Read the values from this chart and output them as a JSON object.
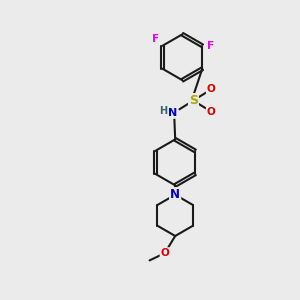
{
  "bg_color": "#ebebeb",
  "bond_color": "#1a1a1a",
  "atom_colors": {
    "F": "#ee00ee",
    "S": "#aaaa00",
    "O": "#dd0000",
    "N": "#0000cc",
    "H": "#336666",
    "C": "#1a1a1a"
  }
}
